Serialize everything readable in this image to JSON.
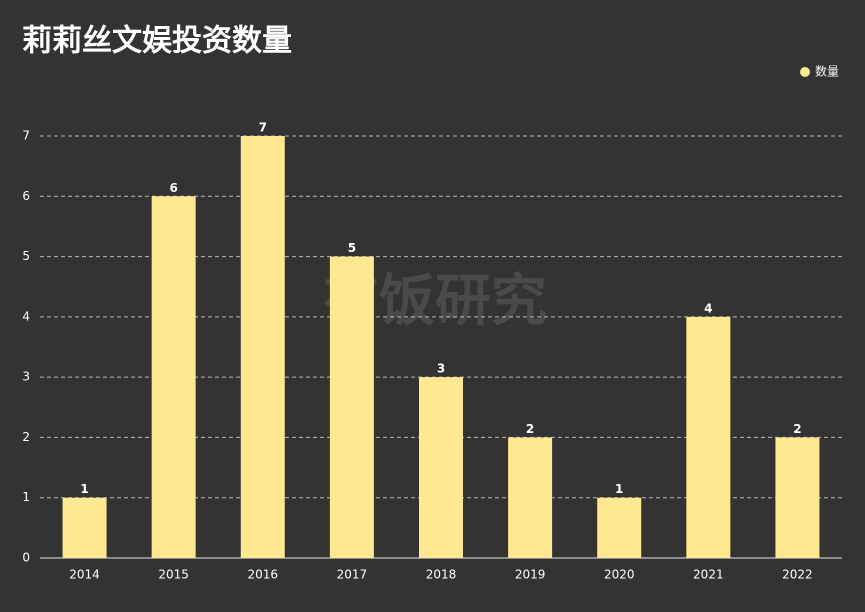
{
  "chart_data": {
    "type": "bar",
    "title": "莉莉丝文娱投资数量",
    "watermark": "有饭研究",
    "categories": [
      "2014",
      "2015",
      "2016",
      "2017",
      "2018",
      "2019",
      "2020",
      "2021",
      "2022"
    ],
    "series": [
      {
        "name": "数量",
        "color": "#ffe88f",
        "values": [
          1,
          6,
          7,
          5,
          3,
          2,
          1,
          4,
          2
        ]
      }
    ],
    "ylim": [
      0,
      7
    ],
    "yticks": [
      0,
      1,
      2,
      3,
      4,
      5,
      6,
      7
    ],
    "grid": true,
    "legend": "top-right"
  }
}
